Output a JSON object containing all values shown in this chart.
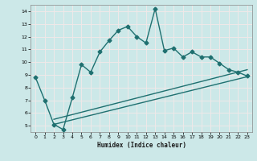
{
  "title": "",
  "xlabel": "Humidex (Indice chaleur)",
  "bg_color": "#cce8e8",
  "line_color": "#1f7070",
  "grid_color": "#f0e8e8",
  "xlim": [
    -0.5,
    23.5
  ],
  "ylim": [
    4.5,
    14.5
  ],
  "xticks": [
    0,
    1,
    2,
    3,
    4,
    5,
    6,
    7,
    8,
    9,
    10,
    11,
    12,
    13,
    14,
    15,
    16,
    17,
    18,
    19,
    20,
    21,
    22,
    23
  ],
  "yticks": [
    5,
    6,
    7,
    8,
    9,
    10,
    11,
    12,
    13,
    14
  ],
  "series1_x": [
    0,
    1,
    2,
    3,
    4,
    5,
    6,
    7,
    8,
    9,
    10,
    11,
    12,
    13,
    14,
    15,
    16,
    17,
    18,
    19,
    20,
    21,
    22,
    23
  ],
  "series1_y": [
    8.8,
    7.0,
    5.1,
    4.7,
    7.2,
    9.8,
    9.2,
    10.8,
    11.7,
    12.5,
    12.8,
    12.0,
    11.5,
    14.2,
    10.9,
    11.1,
    10.4,
    10.8,
    10.4,
    10.4,
    9.9,
    9.4,
    9.2,
    8.9
  ],
  "series2_x": [
    2,
    23
  ],
  "series2_y": [
    5.1,
    8.85
  ],
  "series3_x": [
    2,
    23
  ],
  "series3_y": [
    5.5,
    9.4
  ],
  "marker": "D",
  "markersize": 2.5,
  "linewidth": 1.0
}
